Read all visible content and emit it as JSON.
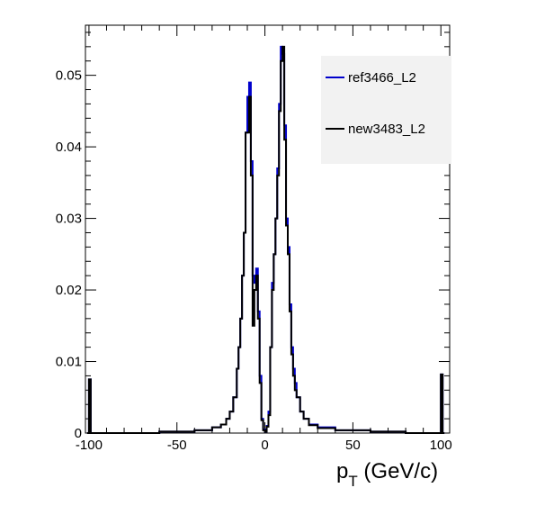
{
  "chart_data": {
    "type": "histogram",
    "title": "",
    "xlabel_main": "p",
    "xlabel_sub": "T",
    "xlabel_unit": " (GeV/c)",
    "ylabel": "",
    "xlim": [
      -102,
      105
    ],
    "ylim": [
      0,
      0.057
    ],
    "x_ticks": [
      -100,
      -50,
      0,
      50,
      100
    ],
    "x_tick_labels": [
      "-100",
      "-50",
      "0",
      "50",
      "100"
    ],
    "y_ticks": [
      0,
      0.01,
      0.02,
      0.03,
      0.04,
      0.05
    ],
    "y_tick_labels": [
      "0",
      "0.01",
      "0.02",
      "0.03",
      "0.04",
      "0.05"
    ],
    "grid": false,
    "legend_position": "top-right",
    "series": [
      {
        "name": "ref3466_L2",
        "color": "#0000cc",
        "points": [
          [
            -101,
            0
          ],
          [
            -100,
            0.0075
          ],
          [
            -99,
            0
          ],
          [
            -80,
            0
          ],
          [
            -60,
            0.0002
          ],
          [
            -40,
            0.0004
          ],
          [
            -30,
            0.0008
          ],
          [
            -25,
            0.0012
          ],
          [
            -22,
            0.002
          ],
          [
            -20,
            0.003
          ],
          [
            -18,
            0.005
          ],
          [
            -16,
            0.009
          ],
          [
            -15,
            0.012
          ],
          [
            -14,
            0.016
          ],
          [
            -13,
            0.022
          ],
          [
            -12,
            0.028
          ],
          [
            -11,
            0.042
          ],
          [
            -10,
            0.047
          ],
          [
            -9,
            0.049
          ],
          [
            -8,
            0.038
          ],
          [
            -7,
            0.022
          ],
          [
            -6,
            0.021
          ],
          [
            -5,
            0.023
          ],
          [
            -4,
            0.017
          ],
          [
            -3,
            0.008
          ],
          [
            -2,
            0.002
          ],
          [
            -1,
            0.0005
          ],
          [
            0,
            0.0002
          ],
          [
            1,
            0.001
          ],
          [
            2,
            0.003
          ],
          [
            3,
            0.012
          ],
          [
            4,
            0.021
          ],
          [
            5,
            0.025
          ],
          [
            6,
            0.03
          ],
          [
            7,
            0.037
          ],
          [
            8,
            0.046
          ],
          [
            9,
            0.054
          ],
          [
            10,
            0.053
          ],
          [
            11,
            0.043
          ],
          [
            12,
            0.03
          ],
          [
            13,
            0.026
          ],
          [
            14,
            0.018
          ],
          [
            15,
            0.012
          ],
          [
            16,
            0.009
          ],
          [
            17,
            0.007
          ],
          [
            18,
            0.005
          ],
          [
            20,
            0.003
          ],
          [
            22,
            0.002
          ],
          [
            25,
            0.0012
          ],
          [
            30,
            0.0008
          ],
          [
            40,
            0.0004
          ],
          [
            60,
            0.0002
          ],
          [
            80,
            0
          ],
          [
            99,
            0
          ],
          [
            100,
            0.0082
          ],
          [
            101,
            0
          ]
        ]
      },
      {
        "name": "new3483_L2",
        "color": "#000000",
        "points": [
          [
            -101,
            0
          ],
          [
            -100,
            0.0075
          ],
          [
            -99,
            0
          ],
          [
            -80,
            0
          ],
          [
            -60,
            0.0002
          ],
          [
            -40,
            0.0004
          ],
          [
            -30,
            0.0008
          ],
          [
            -25,
            0.0012
          ],
          [
            -22,
            0.002
          ],
          [
            -20,
            0.003
          ],
          [
            -18,
            0.005
          ],
          [
            -16,
            0.009
          ],
          [
            -15,
            0.012
          ],
          [
            -14,
            0.016
          ],
          [
            -13,
            0.022
          ],
          [
            -12,
            0.028
          ],
          [
            -11,
            0.042
          ],
          [
            -10,
            0.042
          ],
          [
            -9,
            0.047
          ],
          [
            -8,
            0.036
          ],
          [
            -7,
            0.015
          ],
          [
            -6,
            0.02
          ],
          [
            -5,
            0.022
          ],
          [
            -4,
            0.016
          ],
          [
            -3,
            0.007
          ],
          [
            -2,
            0.0018
          ],
          [
            -1,
            0.0004
          ],
          [
            0,
            0.0002
          ],
          [
            1,
            0.0009
          ],
          [
            2,
            0.0025
          ],
          [
            3,
            0.012
          ],
          [
            4,
            0.02
          ],
          [
            5,
            0.025
          ],
          [
            6,
            0.03
          ],
          [
            7,
            0.036
          ],
          [
            8,
            0.045
          ],
          [
            9,
            0.052
          ],
          [
            10,
            0.054
          ],
          [
            11,
            0.041
          ],
          [
            12,
            0.029
          ],
          [
            13,
            0.025
          ],
          [
            14,
            0.017
          ],
          [
            15,
            0.011
          ],
          [
            16,
            0.008
          ],
          [
            17,
            0.006
          ],
          [
            18,
            0.005
          ],
          [
            20,
            0.003
          ],
          [
            22,
            0.002
          ],
          [
            25,
            0.0011
          ],
          [
            30,
            0.0007
          ],
          [
            40,
            0.0004
          ],
          [
            60,
            0.0002
          ],
          [
            80,
            0
          ],
          [
            99,
            0
          ],
          [
            100,
            0.0082
          ],
          [
            101,
            0
          ]
        ]
      }
    ]
  }
}
